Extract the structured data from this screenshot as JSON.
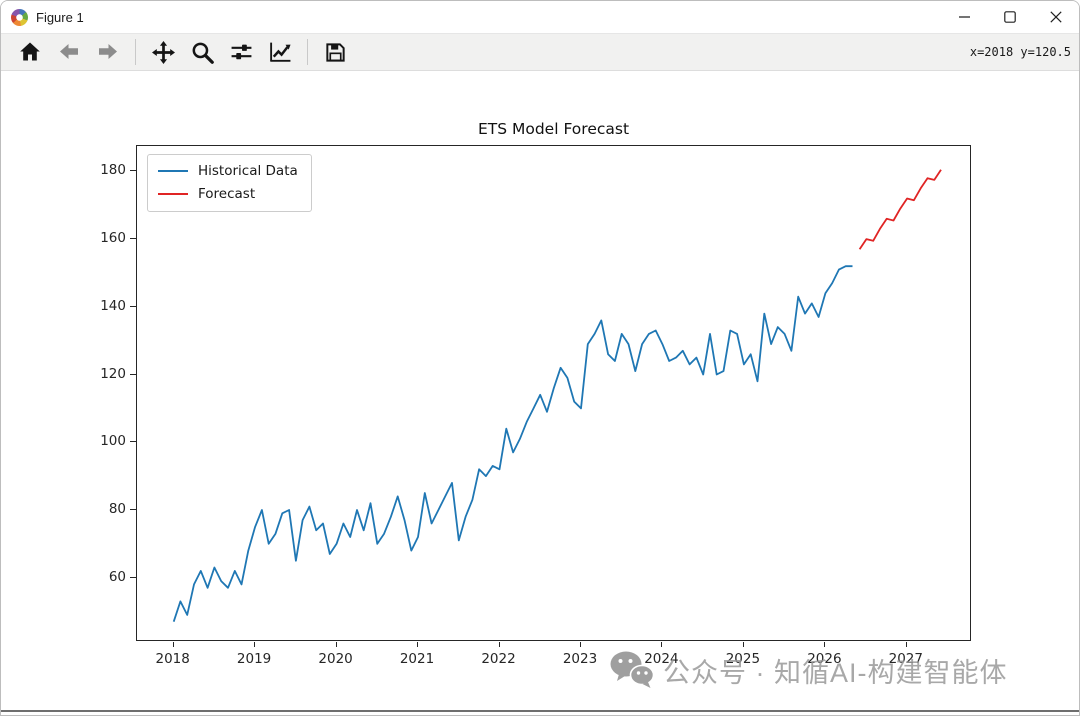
{
  "window": {
    "title": "Figure 1",
    "controls": [
      "minimize",
      "maximize",
      "close"
    ]
  },
  "toolbar": {
    "buttons": [
      "home",
      "back",
      "forward",
      "pan",
      "zoom-to-rect",
      "configure-subplots",
      "customize",
      "save"
    ],
    "coordinates": "x=2018 y=120.5"
  },
  "watermark": {
    "icon": "wechat-icon",
    "text": "公众号 · 知循AI-构建智能体"
  },
  "chart_data": {
    "type": "line",
    "title": "ETS Model Forecast",
    "xlabel": "",
    "ylabel": "",
    "grid": false,
    "xlim": [
      2017.55,
      2027.8
    ],
    "ylim": [
      41,
      187.5
    ],
    "xticks": [
      2018,
      2019,
      2020,
      2021,
      2022,
      2023,
      2024,
      2025,
      2026,
      2027
    ],
    "yticks": [
      60,
      80,
      100,
      120,
      140,
      160,
      180
    ],
    "legend": {
      "position": "upper left",
      "entries": [
        "Historical Data",
        "Forecast"
      ]
    },
    "x_unit": "decimal_year_monthly",
    "series": [
      {
        "name": "Historical Data",
        "color": "#1f77b4",
        "x_start": 2018.0,
        "x_step": 0.0833333,
        "values": [
          47,
          53,
          49,
          58,
          62,
          57,
          63,
          59,
          57,
          62,
          58,
          68,
          75,
          80,
          70,
          73,
          79,
          80,
          65,
          77,
          81,
          74,
          76,
          67,
          70,
          76,
          72,
          80,
          74,
          82,
          70,
          73,
          78,
          84,
          77,
          68,
          72,
          85,
          76,
          80,
          84,
          88,
          71,
          78,
          83,
          92,
          90,
          93,
          92,
          104,
          97,
          101,
          106,
          110,
          114,
          109,
          116,
          122,
          119,
          112,
          110,
          129,
          132,
          136,
          126,
          124,
          132,
          129,
          121,
          129,
          132,
          133,
          129,
          124,
          125,
          127,
          123,
          125,
          120,
          132,
          120,
          121,
          133,
          132,
          123,
          126,
          118,
          138,
          129,
          134,
          132,
          127,
          143,
          138,
          141,
          137,
          144,
          147,
          151,
          152,
          152
        ]
      },
      {
        "name": "Forecast",
        "color": "#e02424",
        "x_start": 2026.42,
        "x_step": 0.0833333,
        "values": [
          157,
          160,
          159.5,
          163,
          166,
          165.5,
          169,
          172,
          171.5,
          175,
          178,
          177.5,
          180.5
        ]
      }
    ]
  }
}
